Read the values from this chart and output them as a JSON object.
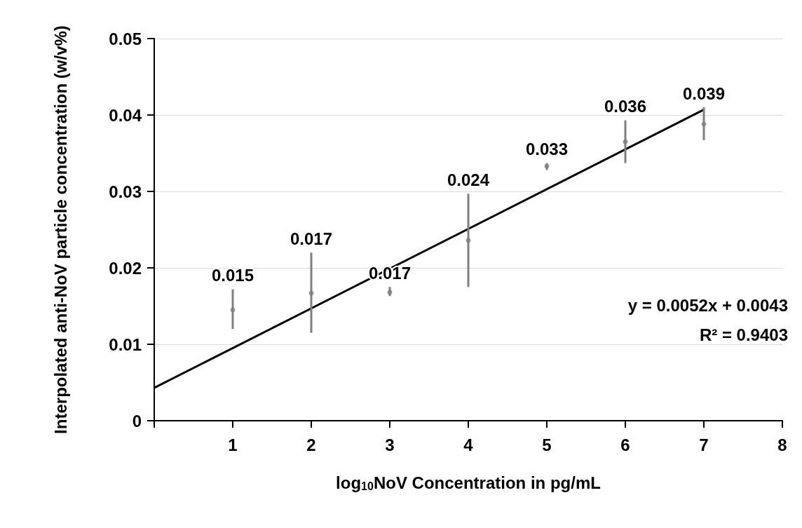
{
  "chart_data": {
    "type": "scatter",
    "xlabel": "log$_{10}$NoV Concentration in pg/mL",
    "ylabel": "Interpolated anti-NoV particle concentration (w/v%)",
    "xlim": [
      0,
      8
    ],
    "xticks": [
      {
        "value": 0,
        "label": null
      },
      1,
      2,
      3,
      4,
      5,
      6,
      7,
      8
    ],
    "ylim": [
      0,
      0.05
    ],
    "yticks": [
      0,
      0.01,
      0.02,
      0.03,
      0.04,
      0.05
    ],
    "grid": "y",
    "marker": "circle",
    "series": [
      {
        "color": "#7f7f7f",
        "x": [
          1,
          2,
          3,
          4,
          5,
          6,
          7
        ],
        "values": [
          0.0145,
          0.0167,
          0.0168,
          0.0236,
          0.0333,
          0.0365,
          0.0388
        ],
        "errors": [
          [
            0.012,
            0.0172
          ],
          [
            0.0115,
            0.022
          ],
          [
            0.0163,
            0.0175
          ],
          [
            0.0175,
            0.0297
          ],
          [
            0.0328,
            0.0337
          ],
          [
            0.0337,
            0.0393
          ],
          [
            0.0367,
            0.041
          ]
        ],
        "value_labels": [
          "0.015",
          "0.017",
          "0.017",
          "0.024",
          "0.033",
          "0.036",
          "0.039"
        ]
      },
      {
        "type": "line",
        "color": "#000000",
        "x": [
          0,
          7
        ],
        "values": [
          0.0043,
          0.0407
        ],
        "line_style": "solid",
        "marker": "none"
      }
    ],
    "annotations": [
      "y = 0.0052x + 0.0043",
      "R² = 0.9403"
    ]
  }
}
